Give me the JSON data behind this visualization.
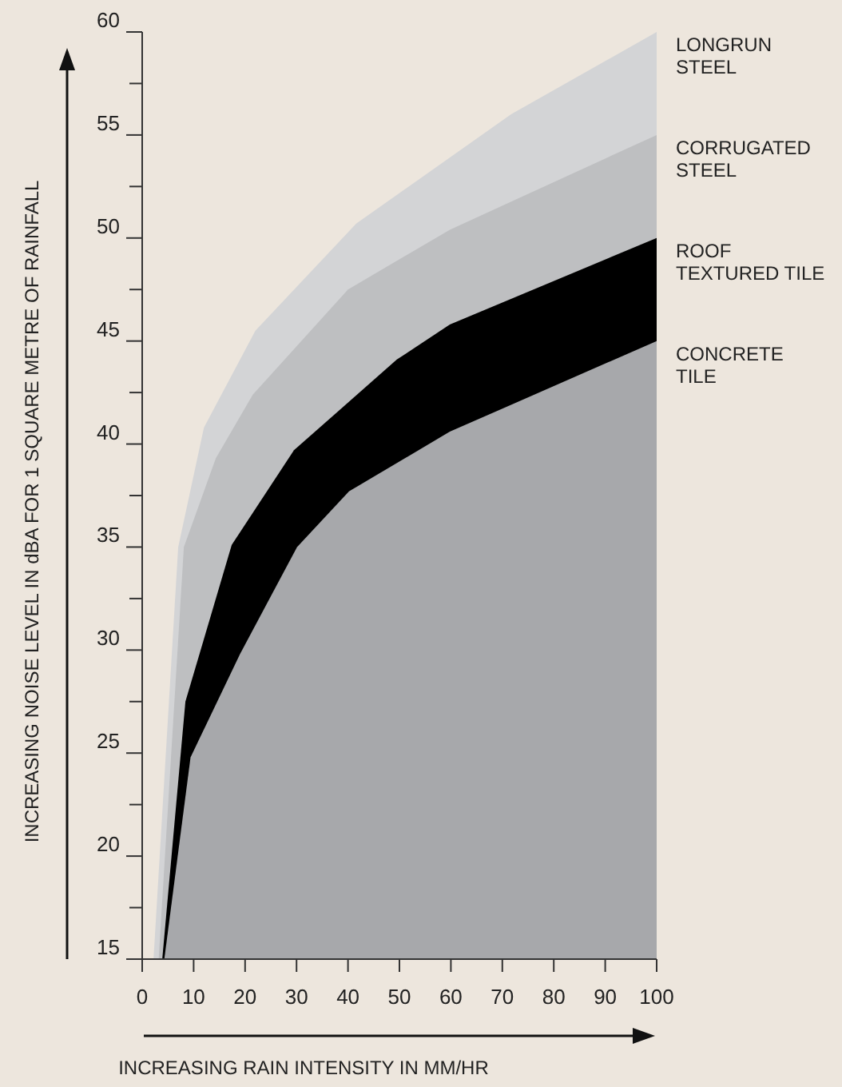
{
  "chart_data": {
    "type": "area",
    "xlabel": "INCREASING RAIN INTENSITY IN MM/HR",
    "ylabel": "INCREASING NOISE LEVEL IN dBA FOR 1 SQUARE METRE OF RAINFALL",
    "xlim": [
      0,
      100
    ],
    "ylim": [
      15,
      60
    ],
    "xticks": [
      0,
      10,
      20,
      30,
      40,
      50,
      60,
      70,
      80,
      90,
      100
    ],
    "yticks": [
      15,
      {
        "value": 17.5,
        "label": null
      },
      20,
      {
        "value": 22.5,
        "label": null
      },
      25,
      {
        "value": 27.5,
        "label": null
      },
      30,
      {
        "value": 32.5,
        "label": null
      },
      35,
      {
        "value": 37.5,
        "label": null
      },
      40,
      {
        "value": 42.5,
        "label": null
      },
      45,
      {
        "value": 47.5,
        "label": null
      },
      50,
      {
        "value": 52.5,
        "label": null
      },
      55,
      {
        "value": 57.5,
        "label": null
      },
      60
    ],
    "series": [
      {
        "name": "LONGRUN\nSTEEL",
        "color": "#d3d4d6",
        "x": [
          2.2,
          7,
          12,
          22,
          41.6,
          71.7,
          100
        ],
        "values": [
          15,
          35,
          40.8,
          45.5,
          50.7,
          56,
          60
        ]
      },
      {
        "name": "CORRUGATED\nSTEEL",
        "color": "#bebfc1",
        "x": [
          3.2,
          8.1,
          14.3,
          21.5,
          40,
          59.8,
          100
        ],
        "values": [
          15,
          35,
          39.3,
          42.4,
          47.5,
          50.4,
          55
        ]
      },
      {
        "name": "ROOF\nTEXTURED TILE",
        "color": "#000000",
        "x": [
          3.9,
          8.4,
          17.4,
          29.5,
          49.5,
          59.8,
          100
        ],
        "values": [
          15,
          27.5,
          35.1,
          39.7,
          44.1,
          45.8,
          50
        ]
      },
      {
        "name": "CONCRETE\nTILE",
        "color": "#a7a8ab",
        "x": [
          4.3,
          9.4,
          19,
          30.1,
          40.2,
          59.8,
          100
        ],
        "values": [
          15,
          24.8,
          29.8,
          35,
          37.7,
          40.6,
          45
        ]
      }
    ]
  }
}
